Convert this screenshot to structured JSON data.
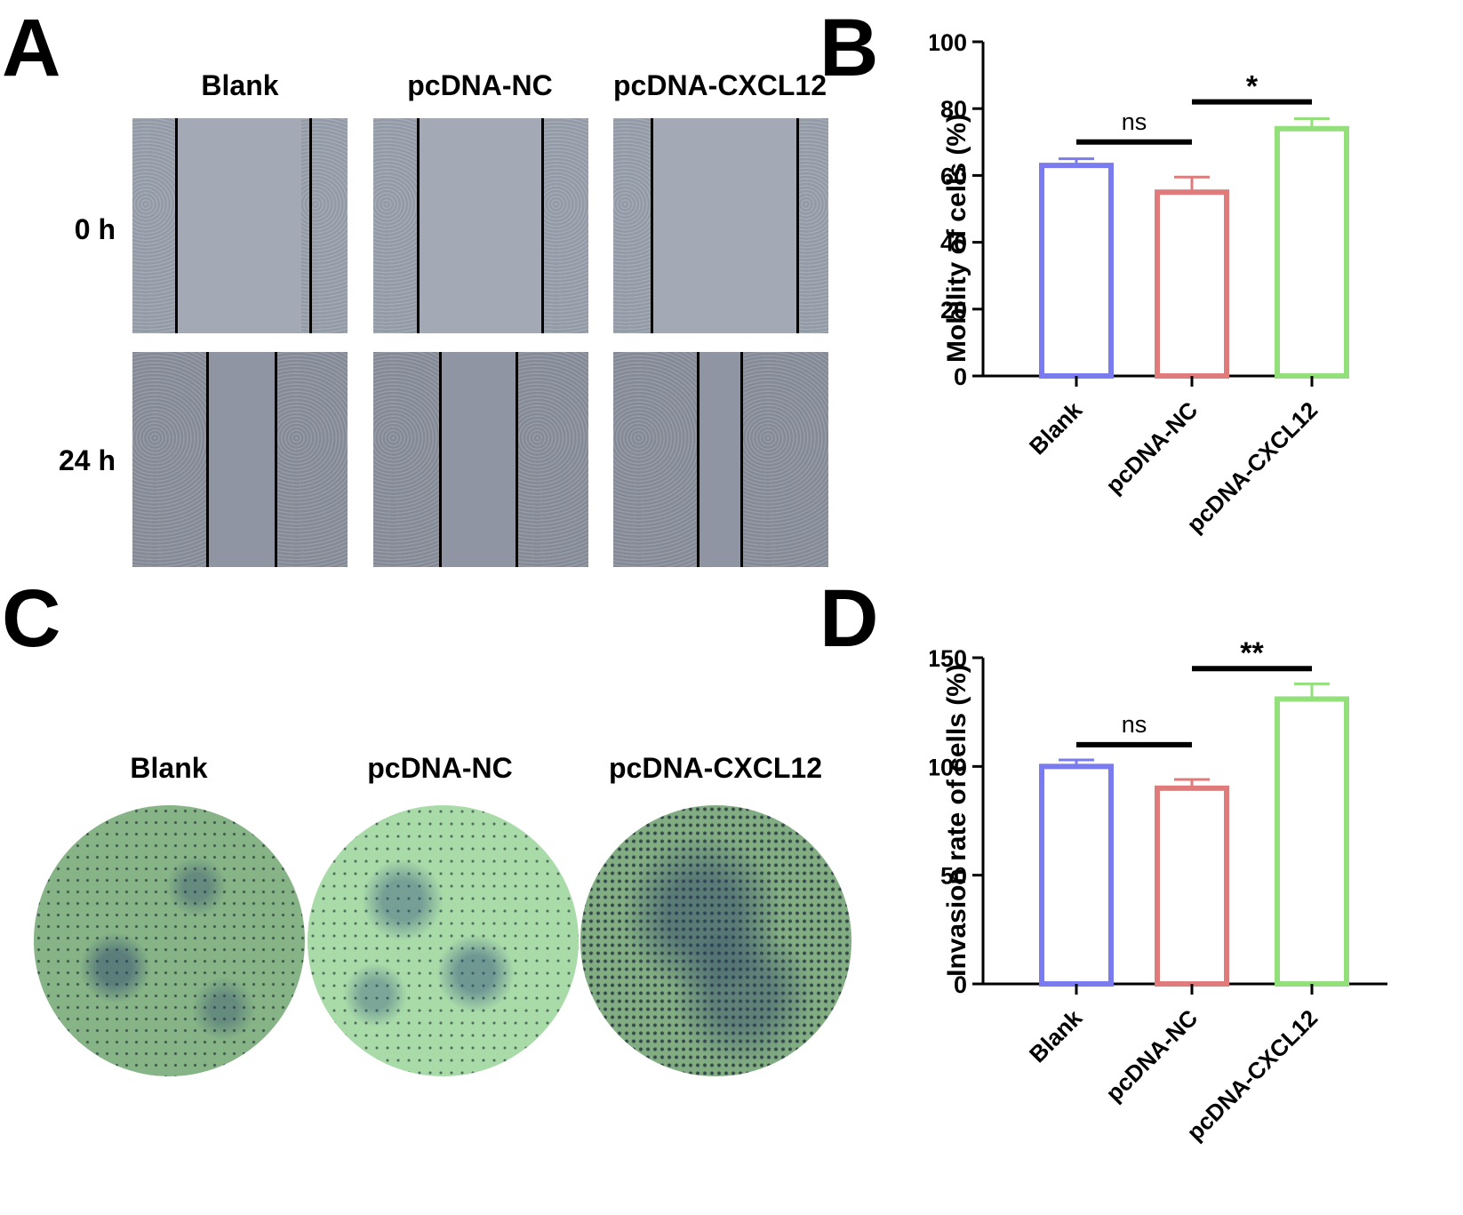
{
  "panels": {
    "a": "A",
    "b": "B",
    "c": "C",
    "d": "D"
  },
  "panel_a": {
    "columns": [
      "Blank",
      "pcDNA-NC",
      "pcDNA-CXCL12"
    ],
    "rows": [
      "0 h",
      "24 h"
    ]
  },
  "panel_c": {
    "columns": [
      "Blank",
      "pcDNA-NC",
      "pcDNA-CXCL12"
    ]
  },
  "chart_data": [
    {
      "panel": "B",
      "type": "bar",
      "categories": [
        "Blank",
        "pcDNA-NC",
        "pcDNA-CXCL12"
      ],
      "values": [
        63,
        55,
        74
      ],
      "errors": [
        2,
        4.5,
        3
      ],
      "colors": [
        "#7b7bf0",
        "#e07b7b",
        "#93df7b"
      ],
      "ylabel": "Mobility of cells (%)",
      "ylim": [
        0,
        100
      ],
      "yticks": [
        0,
        20,
        40,
        60,
        80,
        100
      ],
      "significance": [
        {
          "from": 0,
          "to": 1,
          "label": "ns",
          "y": 70
        },
        {
          "from": 1,
          "to": 2,
          "label": "*",
          "y": 82
        }
      ]
    },
    {
      "panel": "D",
      "type": "bar",
      "categories": [
        "Blank",
        "pcDNA-NC",
        "pcDNA-CXCL12"
      ],
      "values": [
        100,
        90,
        131
      ],
      "errors": [
        3,
        4,
        7
      ],
      "colors": [
        "#7b7bf0",
        "#e07b7b",
        "#93df7b"
      ],
      "ylabel": "Invasion rate of cells (%)",
      "ylim": [
        0,
        150
      ],
      "yticks": [
        0,
        50,
        100,
        150
      ],
      "significance": [
        {
          "from": 0,
          "to": 1,
          "label": "ns",
          "y": 110
        },
        {
          "from": 1,
          "to": 2,
          "label": "**",
          "y": 145
        }
      ]
    }
  ]
}
